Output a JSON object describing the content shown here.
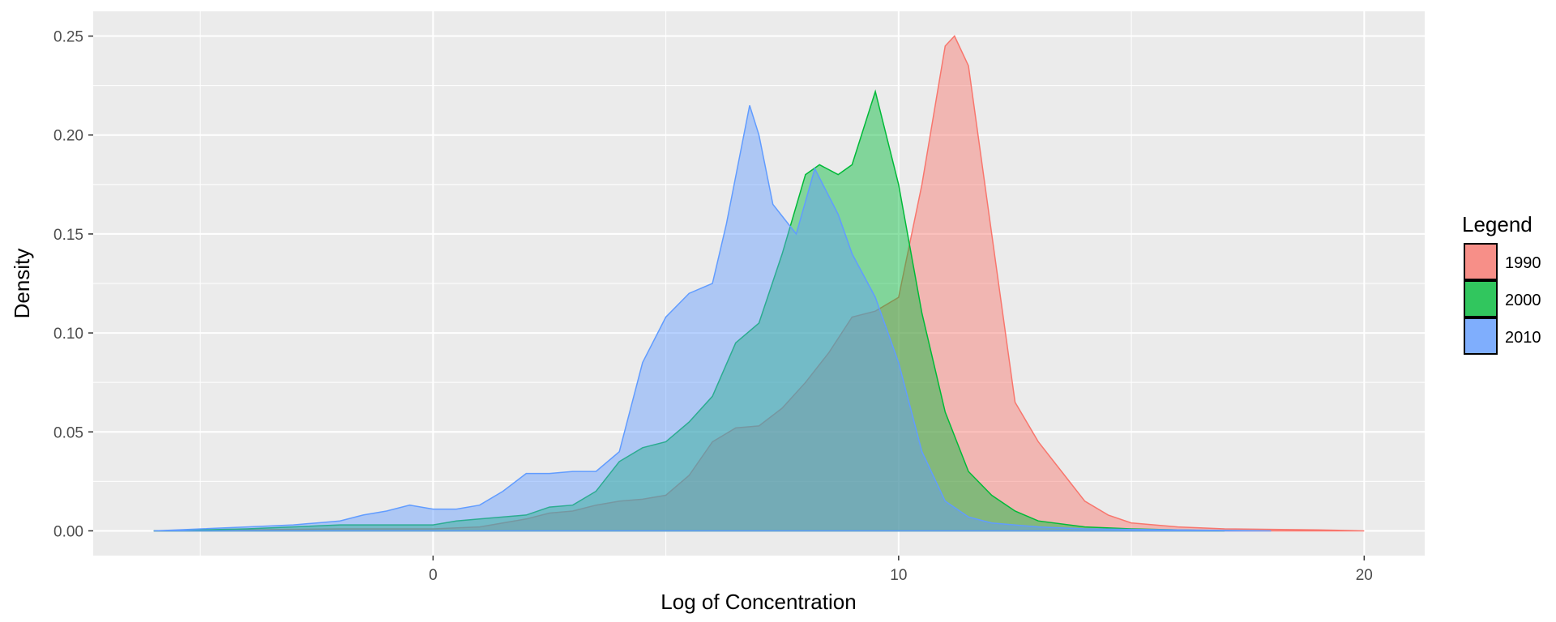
{
  "chart_data": {
    "type": "area",
    "title": "",
    "xlabel": "Log of Concentration",
    "ylabel": "Density",
    "xlim": [
      -7.3,
      21.3
    ],
    "ylim": [
      -0.0125,
      0.2625
    ],
    "x_ticks": [
      0,
      10,
      20
    ],
    "x_tick_labels": [
      "0",
      "10",
      "20"
    ],
    "y_ticks": [
      0,
      0.05,
      0.1,
      0.15,
      0.2,
      0.25
    ],
    "y_tick_labels": [
      "0.00",
      "0.05",
      "0.10",
      "0.15",
      "0.20",
      "0.25"
    ],
    "grid": true,
    "legend": {
      "title": "Legend",
      "position": "right"
    },
    "colors": {
      "panel_background": "#ebebeb",
      "grid": "#ffffff"
    },
    "series": [
      {
        "name": "1990",
        "color": "#f8766d",
        "points": [
          [
            -6,
            0
          ],
          [
            -4,
            0.0005
          ],
          [
            -2,
            0.001
          ],
          [
            0,
            0.001
          ],
          [
            1,
            0.002
          ],
          [
            2,
            0.006
          ],
          [
            2.5,
            0.009
          ],
          [
            3,
            0.01
          ],
          [
            3.5,
            0.013
          ],
          [
            4,
            0.015
          ],
          [
            4.5,
            0.016
          ],
          [
            5,
            0.018
          ],
          [
            5.5,
            0.028
          ],
          [
            6,
            0.045
          ],
          [
            6.5,
            0.052
          ],
          [
            7,
            0.053
          ],
          [
            7.5,
            0.062
          ],
          [
            8,
            0.075
          ],
          [
            8.5,
            0.09
          ],
          [
            9,
            0.108
          ],
          [
            9.5,
            0.111
          ],
          [
            10,
            0.118
          ],
          [
            10.5,
            0.175
          ],
          [
            11,
            0.245
          ],
          [
            11.2,
            0.25
          ],
          [
            11.5,
            0.235
          ],
          [
            12,
            0.15
          ],
          [
            12.5,
            0.065
          ],
          [
            13,
            0.045
          ],
          [
            13.5,
            0.03
          ],
          [
            14,
            0.015
          ],
          [
            14.5,
            0.008
          ],
          [
            15,
            0.004
          ],
          [
            16,
            0.002
          ],
          [
            17,
            0.001
          ],
          [
            19,
            0.0005
          ],
          [
            20,
            0
          ]
        ]
      },
      {
        "name": "2000",
        "color": "#00ba38",
        "points": [
          [
            -6,
            0
          ],
          [
            -4,
            0.001
          ],
          [
            -2,
            0.003
          ],
          [
            -1,
            0.003
          ],
          [
            0,
            0.003
          ],
          [
            0.5,
            0.005
          ],
          [
            1,
            0.006
          ],
          [
            2,
            0.008
          ],
          [
            2.5,
            0.012
          ],
          [
            3,
            0.013
          ],
          [
            3.5,
            0.02
          ],
          [
            4,
            0.035
          ],
          [
            4.5,
            0.042
          ],
          [
            5,
            0.045
          ],
          [
            5.5,
            0.055
          ],
          [
            6,
            0.068
          ],
          [
            6.5,
            0.095
          ],
          [
            7,
            0.105
          ],
          [
            7.5,
            0.14
          ],
          [
            8,
            0.18
          ],
          [
            8.3,
            0.185
          ],
          [
            8.7,
            0.18
          ],
          [
            9,
            0.185
          ],
          [
            9.5,
            0.222
          ],
          [
            10,
            0.175
          ],
          [
            10.5,
            0.11
          ],
          [
            11,
            0.06
          ],
          [
            11.5,
            0.03
          ],
          [
            12,
            0.018
          ],
          [
            12.5,
            0.01
          ],
          [
            13,
            0.005
          ],
          [
            14,
            0.002
          ],
          [
            15,
            0.001
          ],
          [
            16,
            0.0005
          ],
          [
            17,
            0
          ]
        ]
      },
      {
        "name": "2010",
        "color": "#619cff",
        "points": [
          [
            -6,
            0
          ],
          [
            -4,
            0.002
          ],
          [
            -3,
            0.003
          ],
          [
            -2.5,
            0.004
          ],
          [
            -2,
            0.005
          ],
          [
            -1.5,
            0.008
          ],
          [
            -1,
            0.01
          ],
          [
            -0.5,
            0.013
          ],
          [
            0,
            0.011
          ],
          [
            0.5,
            0.011
          ],
          [
            1,
            0.013
          ],
          [
            1.5,
            0.02
          ],
          [
            2,
            0.029
          ],
          [
            2.5,
            0.029
          ],
          [
            3,
            0.03
          ],
          [
            3.5,
            0.03
          ],
          [
            4,
            0.04
          ],
          [
            4.5,
            0.085
          ],
          [
            5,
            0.108
          ],
          [
            5.5,
            0.12
          ],
          [
            6,
            0.125
          ],
          [
            6.3,
            0.155
          ],
          [
            6.8,
            0.215
          ],
          [
            7,
            0.2
          ],
          [
            7.3,
            0.165
          ],
          [
            7.8,
            0.15
          ],
          [
            8.2,
            0.183
          ],
          [
            8.7,
            0.16
          ],
          [
            9,
            0.14
          ],
          [
            9.5,
            0.118
          ],
          [
            10,
            0.085
          ],
          [
            10.5,
            0.04
          ],
          [
            11,
            0.015
          ],
          [
            11.5,
            0.007
          ],
          [
            12,
            0.004
          ],
          [
            13,
            0.002
          ],
          [
            14,
            0.001
          ],
          [
            16,
            0.0005
          ],
          [
            18,
            0
          ]
        ]
      }
    ]
  }
}
